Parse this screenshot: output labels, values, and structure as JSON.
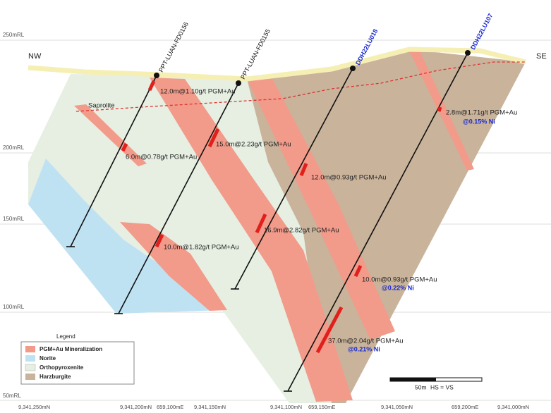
{
  "elevations": [
    "250mRL",
    "200mRL",
    "150mRL",
    "100mRL",
    "50mRL"
  ],
  "directions": {
    "left": "NW",
    "right": "SE"
  },
  "holes": [
    "PPT-LUAN-FD0156",
    "PPT-LUAN-FD0155",
    "DDH22LU018",
    "DDH22LU107"
  ],
  "saprolite": "Saprolite",
  "intercepts": [
    "12.0m@1.10g/t PGM+Au",
    "6.0m@0.78g/t PGM+Au",
    "15.0m@2.23g/t PGM+Au",
    "10.0m@1.82g/t PGM+Au",
    "12.0m@0.93g/t PGM+Au",
    "16.9m@2.82g/t PGM+Au",
    "10.0m@0.93g/t PGM+Au",
    "37.0m@2.04g/t PGM+Au",
    "2.8m@1.71g/t PGM+Au"
  ],
  "nickel": [
    "@0.22% Ni",
    "@0.21% Ni",
    "@0.15% Ni"
  ],
  "legend": {
    "title": "Legend",
    "items": [
      "PGM+Au Mineralization",
      "Norite",
      "Orthopyroxenite",
      "Harzburgite"
    ]
  },
  "scale": {
    "length": "50m",
    "ratio": "HS = VS"
  },
  "coordinates": [
    "9,341,250mN",
    "9,341,200mN",
    "659,100mE",
    "9,341,150mN",
    "9,341,100mN",
    "659,150mE",
    "9,341,050mN",
    "659,200mE",
    "9,341,000mN"
  ]
}
